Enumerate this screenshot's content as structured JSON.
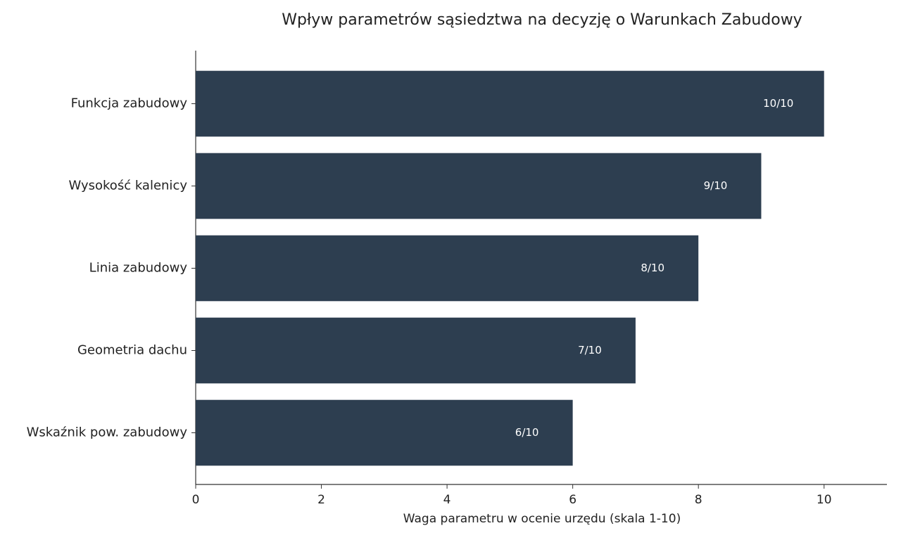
{
  "chart_data": {
    "type": "barh",
    "title": "Wpływ parametrów sąsiedztwa na decyzję o Warunkach Zabudowy",
    "xlabel": "Waga parametru w ocenie urzędu (skala 1-10)",
    "categories": [
      "Funkcja zabudowy",
      "Wysokość kalenicy",
      "Linia zabudowy",
      "Geometria dachu",
      "Wskaźnik pow. zabudowy"
    ],
    "values": [
      10,
      9,
      8,
      7,
      6
    ],
    "value_labels": [
      "10/10",
      "9/10",
      "8/10",
      "7/10",
      "6/10"
    ],
    "color": "#2d3e50",
    "xlim": [
      0,
      11
    ],
    "xticks": [
      0,
      2,
      4,
      6,
      8,
      10
    ],
    "grid": false
  }
}
